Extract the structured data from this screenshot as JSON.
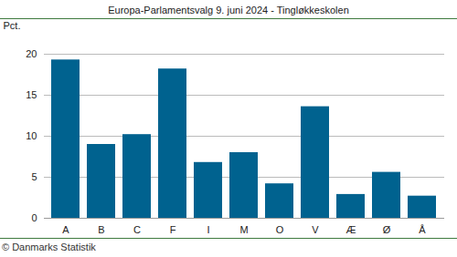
{
  "chart_data": {
    "type": "bar",
    "title": "Europa-Parlamentsvalg 9. juni 2024 - Tingløkkeskolen",
    "y_label": "Pct.",
    "caption": "© Danmarks Statistik",
    "categories": [
      "A",
      "B",
      "C",
      "F",
      "I",
      "M",
      "O",
      "V",
      "Æ",
      "Ø",
      "Å"
    ],
    "values": [
      19.3,
      9.0,
      10.2,
      18.2,
      6.8,
      8.0,
      4.2,
      13.6,
      2.9,
      5.6,
      2.7
    ],
    "color": "#00628f",
    "ylim": [
      0,
      20
    ],
    "yticks": [
      0,
      5,
      10,
      15,
      20
    ],
    "grid": true
  }
}
